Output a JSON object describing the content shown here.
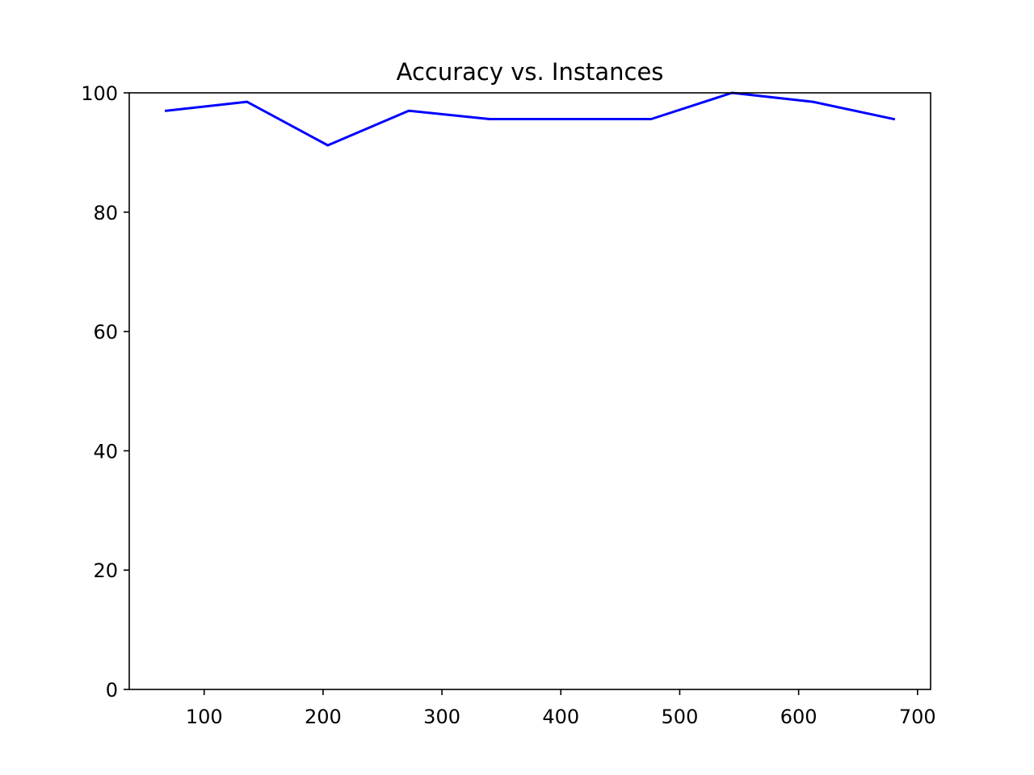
{
  "chart_data": {
    "type": "line",
    "title": "Accuracy vs. Instances",
    "xlabel": "",
    "ylabel": "",
    "xlim": [
      37,
      711
    ],
    "ylim": [
      0,
      100
    ],
    "x_ticks": [
      100,
      200,
      300,
      400,
      500,
      600,
      700
    ],
    "y_ticks": [
      0,
      20,
      40,
      60,
      80,
      100
    ],
    "grid": false,
    "series": [
      {
        "color": "#0000ff",
        "x": [
          68,
          136,
          204,
          272,
          340,
          408,
          476,
          544,
          612,
          680
        ],
        "y": [
          97.0,
          98.5,
          91.2,
          97.0,
          95.6,
          95.6,
          95.6,
          100.0,
          98.5,
          95.6
        ]
      }
    ]
  }
}
